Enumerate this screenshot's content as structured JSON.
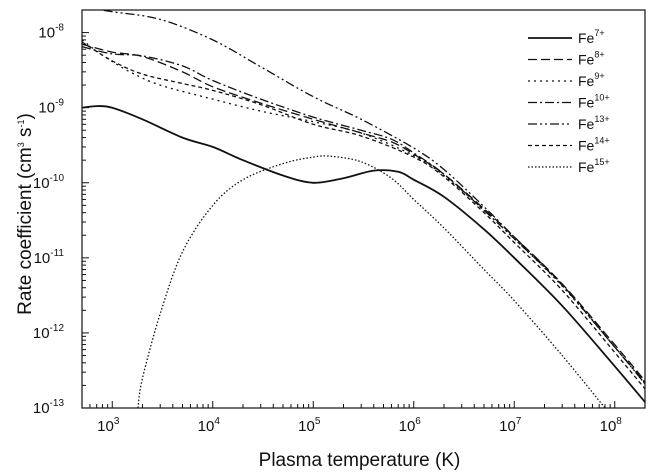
{
  "chart_data": {
    "type": "line",
    "xlabel": "Plasma temperature (K)",
    "ylabel_parts": {
      "pre": "Rate coefficient (cm",
      "e1": "3",
      "mid": " s",
      "e2": "-1",
      "post": ")"
    },
    "x_scale": "log",
    "y_scale": "log",
    "xlim": [
      500,
      200000000
    ],
    "ylim": [
      1e-13,
      2e-08
    ],
    "x_ticks": [
      {
        "value": 1000,
        "base": "10",
        "exp": "3"
      },
      {
        "value": 10000,
        "base": "10",
        "exp": "4"
      },
      {
        "value": 100000,
        "base": "10",
        "exp": "5"
      },
      {
        "value": 1000000,
        "base": "10",
        "exp": "6"
      },
      {
        "value": 10000000,
        "base": "10",
        "exp": "7"
      },
      {
        "value": 100000000,
        "base": "10",
        "exp": "8"
      }
    ],
    "y_ticks": [
      {
        "value": 1e-13,
        "base": "10",
        "exp": "-13"
      },
      {
        "value": 1e-12,
        "base": "10",
        "exp": "-12"
      },
      {
        "value": 1e-11,
        "base": "10",
        "exp": "-11"
      },
      {
        "value": 1e-10,
        "base": "10",
        "exp": "-10"
      },
      {
        "value": 1e-09,
        "base": "10",
        "exp": "-9"
      },
      {
        "value": 1e-08,
        "base": "10",
        "exp": "-8"
      }
    ],
    "grid": false,
    "legend_position": "top-right",
    "series": [
      {
        "name": "Fe7+",
        "base": "Fe",
        "charge": "7+",
        "dash": "",
        "points": [
          [
            500,
            1e-09
          ],
          [
            700,
            1.05e-09
          ],
          [
            1000,
            1e-09
          ],
          [
            2000,
            7e-10
          ],
          [
            5000,
            4e-10
          ],
          [
            10000,
            3e-10
          ],
          [
            20000,
            2e-10
          ],
          [
            50000,
            1.25e-10
          ],
          [
            100000,
            1e-10
          ],
          [
            200000,
            1.15e-10
          ],
          [
            400000,
            1.45e-10
          ],
          [
            700000,
            1.4e-10
          ],
          [
            1000000,
            1.1e-10
          ],
          [
            2000000,
            6.5e-11
          ],
          [
            5000000,
            2.4e-11
          ],
          [
            10000000,
            1e-11
          ],
          [
            30000000,
            2.3e-12
          ],
          [
            100000000,
            3.6e-13
          ],
          [
            200000000,
            1.2e-13
          ]
        ]
      },
      {
        "name": "Fe8+",
        "base": "Fe",
        "charge": "8+",
        "dash": "9,4",
        "points": [
          [
            500,
            7e-09
          ],
          [
            1000,
            5.5e-09
          ],
          [
            2000,
            4.8e-09
          ],
          [
            5000,
            3e-09
          ],
          [
            10000,
            1.9e-09
          ],
          [
            30000,
            1.15e-09
          ],
          [
            100000,
            7e-10
          ],
          [
            300000,
            4.6e-10
          ],
          [
            600000,
            3.5e-10
          ],
          [
            1000000,
            2.4e-10
          ],
          [
            2000000,
            1.3e-10
          ],
          [
            5000000,
            4.5e-11
          ],
          [
            10000000,
            1.9e-11
          ],
          [
            30000000,
            4.5e-12
          ],
          [
            100000000,
            7e-13
          ],
          [
            200000000,
            2.3e-13
          ]
        ]
      },
      {
        "name": "Fe9+",
        "base": "Fe",
        "charge": "9+",
        "dash": "2,4",
        "points": [
          [
            500,
            8e-09
          ],
          [
            800,
            5e-09
          ],
          [
            1500,
            3e-09
          ],
          [
            3000,
            2e-09
          ],
          [
            10000,
            1.3e-09
          ],
          [
            30000,
            9e-10
          ],
          [
            100000,
            6.5e-10
          ],
          [
            300000,
            4.6e-10
          ],
          [
            1000000,
            2.3e-10
          ],
          [
            2000000,
            1.25e-10
          ],
          [
            5000000,
            4.3e-11
          ],
          [
            10000000,
            1.8e-11
          ],
          [
            30000000,
            4.2e-12
          ],
          [
            100000000,
            6.5e-13
          ],
          [
            200000000,
            2.1e-13
          ]
        ]
      },
      {
        "name": "Fe10+",
        "base": "Fe",
        "charge": "10+",
        "dash": "9,3,2,3",
        "points": [
          [
            500,
            6.5e-09
          ],
          [
            1000,
            5.2e-09
          ],
          [
            2000,
            4.9e-09
          ],
          [
            5000,
            3.6e-09
          ],
          [
            10000,
            2.3e-09
          ],
          [
            30000,
            1.3e-09
          ],
          [
            100000,
            7.5e-10
          ],
          [
            300000,
            5e-10
          ],
          [
            600000,
            3.8e-10
          ],
          [
            1000000,
            2.5e-10
          ],
          [
            2000000,
            1.3e-10
          ],
          [
            5000000,
            4.3e-11
          ],
          [
            10000000,
            1.8e-11
          ],
          [
            30000000,
            4.3e-12
          ],
          [
            100000000,
            6.5e-13
          ],
          [
            200000000,
            2.2e-13
          ]
        ]
      },
      {
        "name": "Fe13+",
        "base": "Fe",
        "charge": "13+",
        "dash": "9,3,2,3,2,3",
        "points": [
          [
            500,
            2.2e-08
          ],
          [
            1000,
            1.9e-08
          ],
          [
            3000,
            1.5e-08
          ],
          [
            10000,
            8e-09
          ],
          [
            30000,
            3.5e-09
          ],
          [
            100000,
            1.4e-09
          ],
          [
            300000,
            7e-10
          ],
          [
            1000000,
            2.9e-10
          ],
          [
            2000000,
            1.5e-10
          ],
          [
            5000000,
            4.8e-11
          ],
          [
            10000000,
            1.9e-11
          ],
          [
            30000000,
            4.4e-12
          ],
          [
            100000000,
            6.5e-13
          ],
          [
            200000000,
            2.1e-13
          ]
        ]
      },
      {
        "name": "Fe14+",
        "base": "Fe",
        "charge": "14+",
        "dash": "4,3",
        "points": [
          [
            500,
            7.5e-09
          ],
          [
            1000,
            4.2e-09
          ],
          [
            2000,
            2.8e-09
          ],
          [
            5000,
            2.1e-09
          ],
          [
            10000,
            1.7e-09
          ],
          [
            30000,
            1.1e-09
          ],
          [
            100000,
            6e-10
          ],
          [
            300000,
            4.2e-10
          ],
          [
            1000000,
            2.2e-10
          ],
          [
            2000000,
            1.2e-10
          ],
          [
            5000000,
            4e-11
          ],
          [
            10000000,
            1.6e-11
          ],
          [
            30000000,
            3.7e-12
          ],
          [
            100000000,
            5.5e-13
          ],
          [
            200000000,
            1.8e-13
          ]
        ]
      },
      {
        "name": "Fe15+",
        "base": "Fe",
        "charge": "15+",
        "dash": "1.5,2",
        "points": [
          [
            1800,
            1e-13
          ],
          [
            2000,
            2.5e-13
          ],
          [
            3000,
            1.8e-12
          ],
          [
            5000,
            1.2e-11
          ],
          [
            10000,
            5e-11
          ],
          [
            20000,
            1.1e-10
          ],
          [
            50000,
            1.8e-10
          ],
          [
            100000,
            2.2e-10
          ],
          [
            150000,
            2.25e-10
          ],
          [
            300000,
            1.9e-10
          ],
          [
            600000,
            1.15e-10
          ],
          [
            1000000,
            6e-11
          ],
          [
            2000000,
            2.5e-11
          ],
          [
            5000000,
            7e-12
          ],
          [
            10000000,
            2.7e-12
          ],
          [
            30000000,
            5e-13
          ],
          [
            80000000,
            1e-13
          ]
        ]
      }
    ]
  }
}
